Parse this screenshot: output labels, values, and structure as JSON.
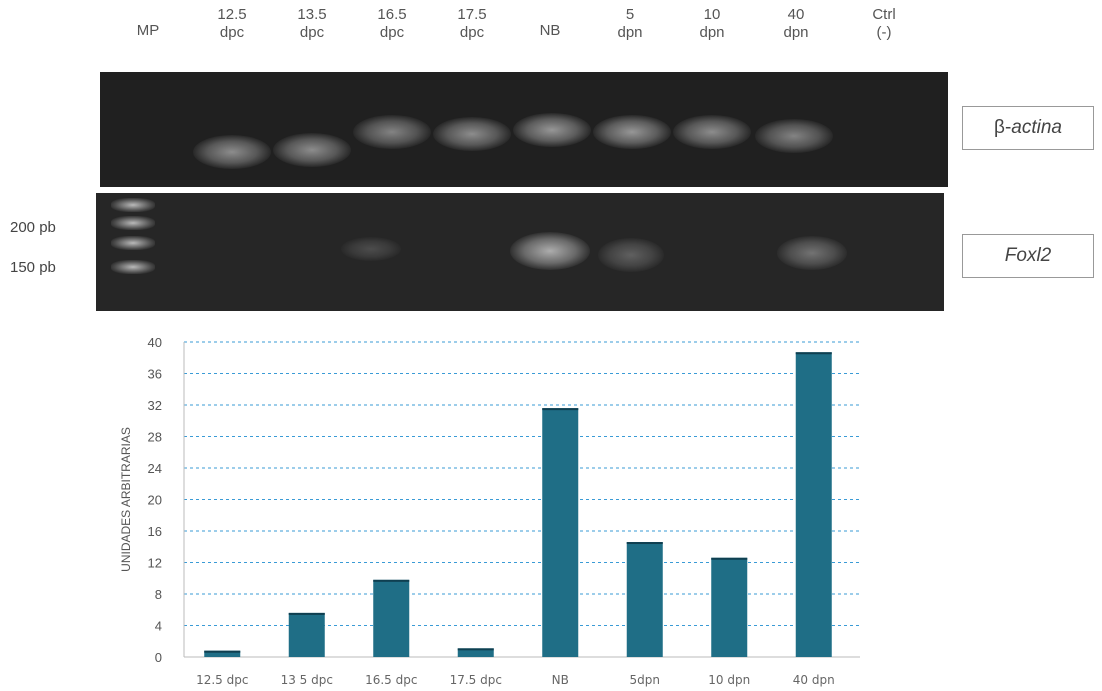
{
  "lanes": [
    {
      "line1": "MP",
      "line2": ""
    },
    {
      "line1": "12.5",
      "line2": "dpc"
    },
    {
      "line1": "13.5",
      "line2": "dpc"
    },
    {
      "line1": "16.5",
      "line2": "dpc"
    },
    {
      "line1": "17.5",
      "line2": "dpc"
    },
    {
      "line1": "NB",
      "line2": ""
    },
    {
      "line1": "5",
      "line2": "dpn"
    },
    {
      "line1": "10",
      "line2": "dpn"
    },
    {
      "line1": "40",
      "line2": "dpn"
    },
    {
      "line1": "Ctrl",
      "line2": "(-)"
    }
  ],
  "gels": {
    "actin": {
      "label_prefix": "β-",
      "label_gene": "actina"
    },
    "foxl2": {
      "label_gene": "Foxl2"
    }
  },
  "size_markers": [
    "200 pb",
    "150 pb"
  ],
  "chart_data": {
    "type": "bar",
    "categories": [
      "12.5 dpc",
      "13 5 dpc",
      "16.5 dpc",
      "17.5 dpc",
      "NB",
      "5dpn",
      "10 dpn",
      "40 dpn"
    ],
    "values": [
      0.8,
      5.6,
      9.8,
      1.1,
      31.6,
      14.6,
      12.6,
      38.7
    ],
    "title": "",
    "xlabel": "",
    "ylabel": "UNIDADES ARBITRARIAS",
    "ylim": [
      0,
      40
    ],
    "yticks": [
      0,
      4,
      8,
      12,
      16,
      20,
      24,
      28,
      32,
      36,
      40
    ],
    "grid": true,
    "bar_color": "#1f6e86",
    "grid_color": "#3a9bd6"
  }
}
